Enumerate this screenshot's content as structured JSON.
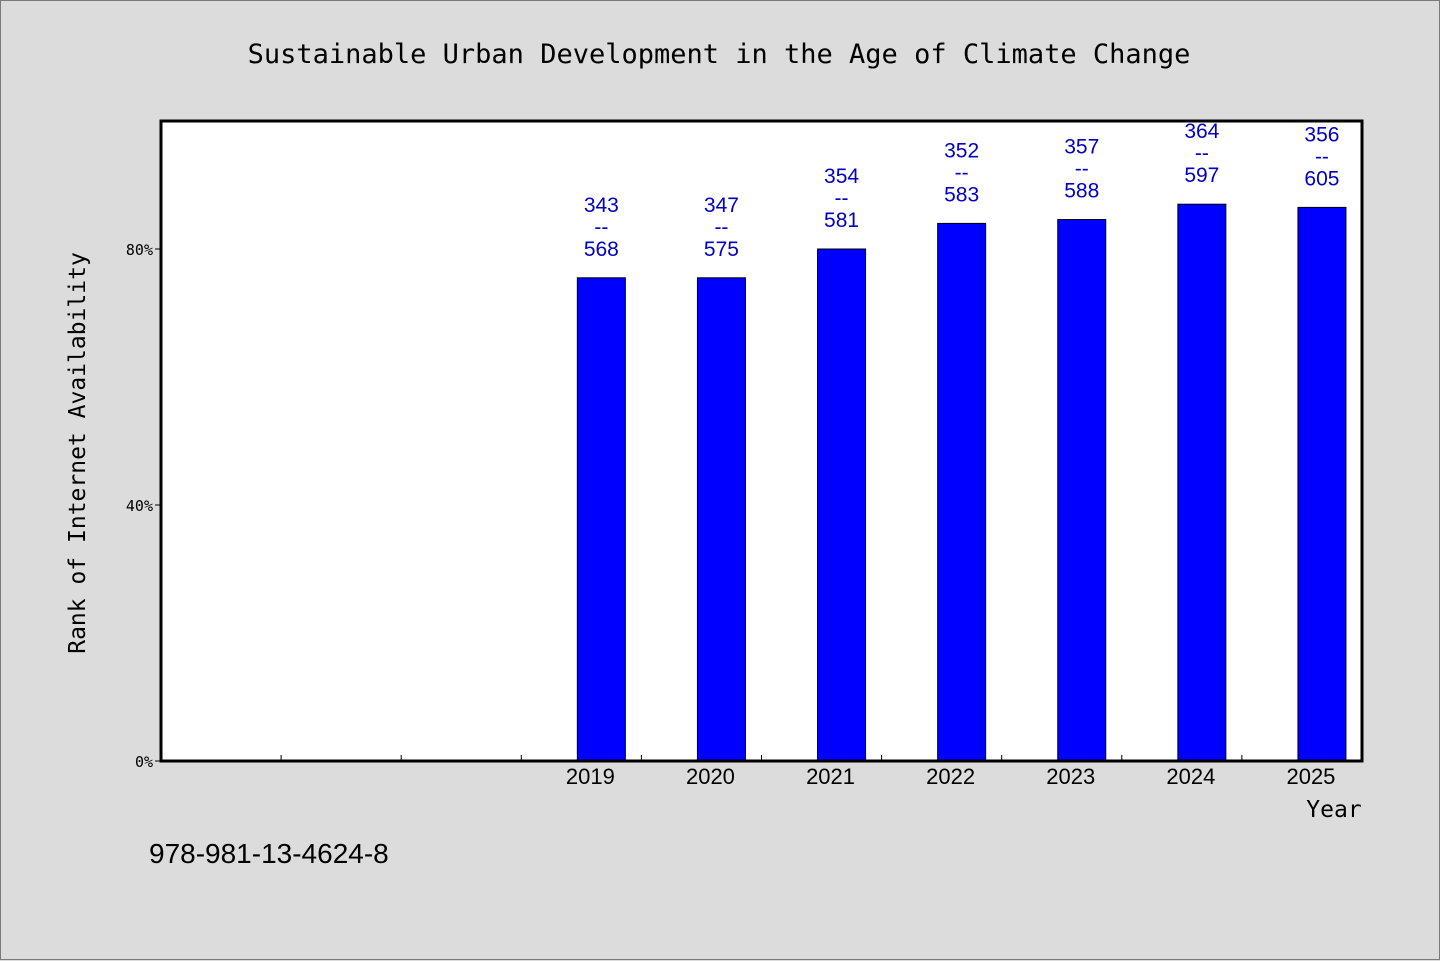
{
  "chart_data": {
    "type": "bar",
    "title": "Sustainable Urban Development in the Age of Climate Change",
    "xlabel": "Year",
    "ylabel": "Rank of Internet Availability",
    "categories": [
      "",
      "",
      "",
      "2019",
      "2020",
      "2021",
      "2022",
      "2023",
      "2024",
      "2025"
    ],
    "series": [
      {
        "values": [
          null,
          null,
          null,
          0.755,
          0.755,
          0.8,
          0.84,
          0.846,
          0.87,
          0.865
        ],
        "labels": [
          null,
          null,
          null,
          [
            "343",
            "--",
            "568"
          ],
          [
            "347",
            "--",
            "575"
          ],
          [
            "354",
            "--",
            "581"
          ],
          [
            "352",
            "--",
            "583"
          ],
          [
            "357",
            "--",
            "588"
          ],
          [
            "364",
            "--",
            "597"
          ],
          [
            "356",
            "--",
            "605"
          ]
        ],
        "color": "#0000ff"
      }
    ],
    "yticks": [
      {
        "value": 0,
        "label": "0%"
      },
      {
        "value": 0.4,
        "label": "40%"
      },
      {
        "value": 0.8,
        "label": "80%"
      }
    ],
    "ylim": [
      0,
      1.0
    ],
    "grid": false,
    "legend": "none"
  },
  "footer": {
    "isbn": "978-981-13-4624-8"
  },
  "colors": {
    "background": "#dcdcdc",
    "plot_background": "#ffffff",
    "bar": "#0000ff",
    "data_label": "#0000c8"
  }
}
